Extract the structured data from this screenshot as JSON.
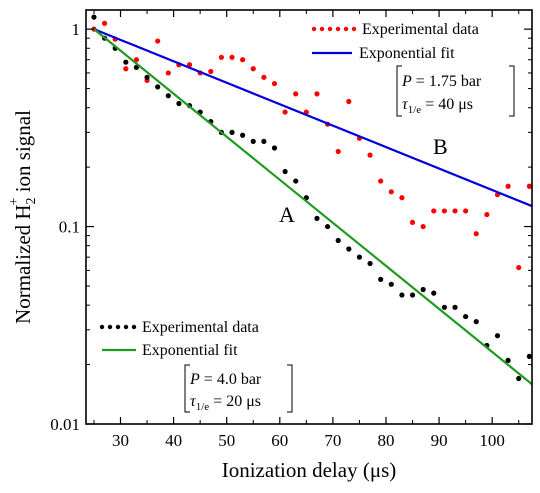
{
  "chart_data": {
    "type": "scatter",
    "xlabel": "Ionization delay (μs)",
    "ylabel": {
      "prefix": "Normalized H",
      "sub": "2",
      "sup": "+",
      "suffix": " ion signal"
    },
    "xlim": [
      23.5,
      107.5
    ],
    "ylim": [
      0.01,
      1.25
    ],
    "yscale": "log",
    "x_ticks": [
      30,
      40,
      50,
      60,
      70,
      80,
      90,
      100
    ],
    "y_ticks": [
      {
        "value": 0.01,
        "label": "0.01"
      },
      {
        "value": 0.1,
        "label": "0.1"
      },
      {
        "value": 1,
        "label": "1"
      }
    ],
    "series": [
      {
        "id": "B-data",
        "color": "#ff0000",
        "marker": "dot",
        "x": [
          25,
          27,
          29,
          31,
          33,
          35,
          37,
          39,
          41,
          43,
          45,
          47,
          49,
          51,
          53,
          55,
          57,
          59,
          61,
          63,
          65,
          67,
          69,
          71,
          73,
          75,
          77,
          79,
          81,
          83,
          85,
          87,
          89,
          91,
          93,
          95,
          97,
          99,
          101,
          103,
          105,
          107
        ],
        "y": [
          1.0,
          1.07,
          0.89,
          0.63,
          0.7,
          0.55,
          0.87,
          0.6,
          0.66,
          0.66,
          0.6,
          0.61,
          0.72,
          0.72,
          0.7,
          0.63,
          0.57,
          0.53,
          0.38,
          0.47,
          0.38,
          0.47,
          0.33,
          0.24,
          0.43,
          0.28,
          0.23,
          0.17,
          0.15,
          0.14,
          0.105,
          0.1,
          0.12,
          0.12,
          0.12,
          0.12,
          0.092,
          0.115,
          0.145,
          0.16,
          0.062,
          0.16
        ]
      },
      {
        "id": "B-fit",
        "color": "#0000dd",
        "marker": "line",
        "x": [
          25,
          107.5
        ],
        "y": [
          1.0,
          0.127
        ]
      },
      {
        "id": "A-data",
        "color": "#000000",
        "marker": "dot",
        "x": [
          25,
          27,
          29,
          31,
          33,
          35,
          37,
          39,
          41,
          43,
          45,
          47,
          49,
          51,
          53,
          55,
          57,
          59,
          61,
          63,
          65,
          67,
          69,
          71,
          73,
          75,
          77,
          79,
          81,
          83,
          85,
          87,
          89,
          91,
          93,
          95,
          97,
          99,
          101,
          103,
          105,
          107
        ],
        "y": [
          1.15,
          0.9,
          0.8,
          0.68,
          0.64,
          0.57,
          0.51,
          0.46,
          0.42,
          0.41,
          0.38,
          0.34,
          0.3,
          0.3,
          0.29,
          0.27,
          0.27,
          0.25,
          0.19,
          0.17,
          0.14,
          0.11,
          0.1,
          0.085,
          0.077,
          0.07,
          0.065,
          0.054,
          0.051,
          0.045,
          0.045,
          0.048,
          0.046,
          0.039,
          0.039,
          0.035,
          0.033,
          0.025,
          0.028,
          0.021,
          0.017,
          0.022
        ]
      },
      {
        "id": "A-fit",
        "color": "#229922",
        "marker": "line",
        "x": [
          25,
          107.5
        ],
        "y": [
          1.0,
          0.0159
        ]
      }
    ],
    "legends": [
      {
        "id": "legend-B",
        "items": [
          {
            "label": "Experimental data",
            "color": "#ff0000",
            "marker": "dots"
          },
          {
            "label": "Exponential fit",
            "color": "#0000dd",
            "marker": "line"
          }
        ]
      },
      {
        "id": "legend-A",
        "items": [
          {
            "label": "Experimental data",
            "color": "#000000",
            "marker": "dots"
          },
          {
            "label": "Exponential fit",
            "color": "#229922",
            "marker": "line"
          }
        ]
      }
    ],
    "annotations": [
      {
        "id": "params-B",
        "pressure": "1.75 bar",
        "tau": "40 μs"
      },
      {
        "id": "params-A",
        "pressure": "4.0 bar",
        "tau": "20 μs"
      }
    ],
    "curve_labels": [
      {
        "id": "label-B",
        "text": "B"
      },
      {
        "id": "label-A",
        "text": "A"
      }
    ],
    "annotation_symbols": {
      "P": "P",
      "tau": "τ",
      "tau_sub": "1/e",
      "eq": " = "
    },
    "grid": false
  }
}
